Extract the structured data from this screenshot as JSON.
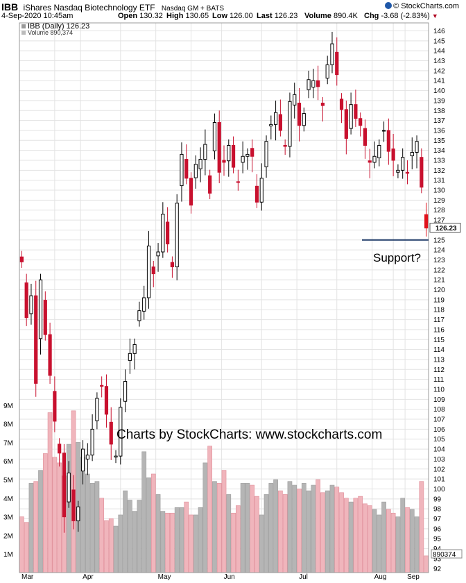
{
  "header": {
    "symbol": "IBB",
    "name": "iShares Nasdaq Biotechnology ETF",
    "exchange": "Nasdaq GM + BATS",
    "copyright": "© StockCharts.com",
    "date": "4-Sep-2020 10:45am",
    "open_label": "Open",
    "open": "130.32",
    "high_label": "High",
    "high": "130.65",
    "low_label": "Low",
    "low": "126.00",
    "last_label": "Last",
    "last": "126.23",
    "volume_label": "Volume",
    "volume": "890.4K",
    "chg_label": "Chg",
    "chg": "-3.68 (-2.83%)"
  },
  "legend": {
    "price": "IBB (Daily) 126.23",
    "volume": "Volume 890,374"
  },
  "annotations": {
    "watermark": "Charts by StockCharts:  www.stockcharts.com",
    "support_label": "Support?",
    "last_price_label": "126.23",
    "last_volume_label": "890374"
  },
  "colors": {
    "up": "#000000",
    "down": "#c8102e",
    "vol_up": "#b5b5b5",
    "vol_down": "#f0b5bc",
    "grid": "#e3e3e3",
    "support_line": "#1f3a68",
    "last_candle": "#e0101a"
  },
  "chart_data": {
    "type": "candlestick",
    "title": "IBB (Daily) 126.23",
    "x_labels": [
      "Mar",
      "Apr",
      "May",
      "Jun",
      "Jul",
      "Aug",
      "Sep"
    ],
    "y_ticks": [
      92,
      93,
      94,
      95,
      96,
      97,
      98,
      99,
      100,
      101,
      102,
      103,
      104,
      105,
      106,
      107,
      108,
      109,
      110,
      111,
      112,
      113,
      114,
      115,
      116,
      117,
      118,
      119,
      120,
      121,
      122,
      123,
      124,
      125,
      126,
      127,
      128,
      129,
      130,
      131,
      132,
      133,
      134,
      135,
      136,
      137,
      138,
      139,
      140,
      141,
      142,
      143,
      144,
      145,
      146
    ],
    "ylim": [
      91.6,
      146.8
    ],
    "volume_ticks": [
      "1M",
      "2M",
      "3M",
      "4M",
      "5M",
      "6M",
      "7M",
      "8M",
      "9M"
    ],
    "support_level": 125,
    "price": [
      122.8,
      117.2,
      119.4,
      110.6,
      121.0,
      115.5,
      111.4,
      106.8,
      103.6,
      97.2,
      101.6,
      96.8,
      98.2,
      104.0,
      103.4,
      106.0,
      109.1,
      110.3,
      107.5,
      104.5,
      103.3,
      108.2,
      110.8,
      113.6,
      114.5,
      117.9,
      119.2,
      124.4,
      121.6,
      123.8,
      127.6,
      124.6,
      122.3,
      128.7,
      133.6,
      131.2,
      128.5,
      132.6,
      133.1,
      134.6,
      129.7,
      136.8,
      131.8,
      132.8,
      134.5,
      132.3,
      130.8,
      133.4,
      133.6,
      133.4,
      128.8,
      131.2,
      134.9,
      136.6,
      137.8,
      136.0,
      134.4,
      138.9,
      139.6,
      136.5,
      137.7,
      141.1,
      141.0,
      140.4,
      138.5,
      142.6,
      144.7,
      141.6,
      138.1,
      135.2,
      138.6,
      137.2,
      136.5,
      134.5,
      132.8,
      133.4,
      134.5,
      136.0,
      133.9,
      133.0,
      132.0,
      133.3,
      131.7,
      133.8,
      134.9,
      130.3,
      126.2
    ],
    "volume_m": [
      3.0,
      2.7,
      4.8,
      4.9,
      5.5,
      6.4,
      8.6,
      6.2,
      5.9,
      5.2,
      6.9,
      8.7,
      7.0,
      6.2,
      5.3,
      4.8,
      4.9,
      4.0,
      2.8,
      2.9,
      2.5,
      3.1,
      4.4,
      3.9,
      3.3,
      3.9,
      6.5,
      5.1,
      5.3,
      4.2,
      3.3,
      3.2,
      3.2,
      3.5,
      3.5,
      3.8,
      3.1,
      3.1,
      3.5,
      5.9,
      6.8,
      4.9,
      4.8,
      5.5,
      4.2,
      3.2,
      3.6,
      4.8,
      4.8,
      4.7,
      4.1,
      3.1,
      4.2,
      4.8,
      5.0,
      4.4,
      4.2,
      4.9,
      4.7,
      4.5,
      4.8,
      4.4,
      4.7,
      5.0,
      4.3,
      4.4,
      4.7,
      4.6,
      4.3,
      4.0,
      3.8,
      4.0,
      4.1,
      3.7,
      3.6,
      3.4,
      3.1,
      3.8,
      3.4,
      3.2,
      3.0,
      4.0,
      3.5,
      3.4,
      3.0,
      4.9,
      0.9
    ]
  }
}
